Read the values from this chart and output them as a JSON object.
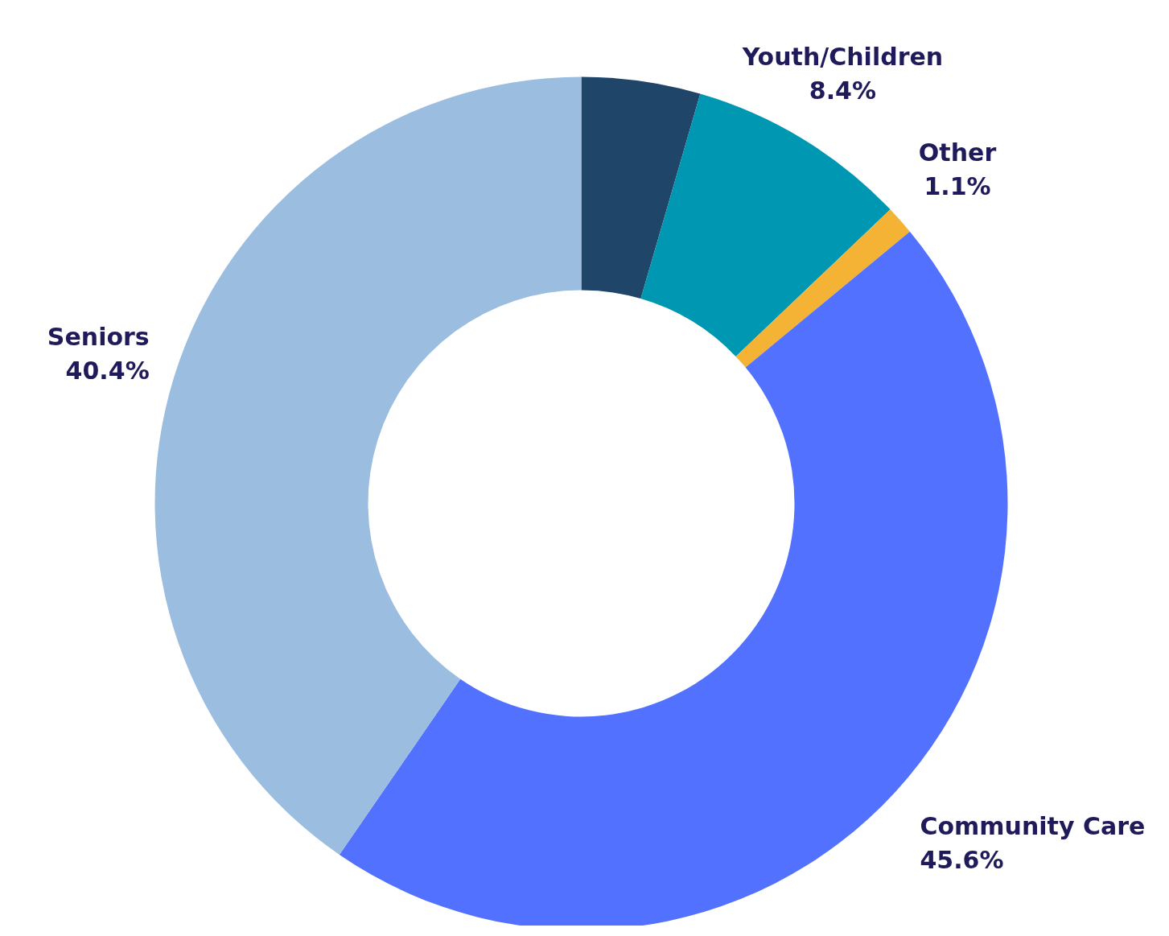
{
  "chart_data": {
    "type": "donut",
    "categories": [
      null,
      "Youth/Children",
      "Other",
      "Community Care",
      "Seniors"
    ],
    "values": [
      4.5,
      8.4,
      1.1,
      45.6,
      40.4
    ],
    "value_labels": [
      null,
      "8.4%",
      "1.1%",
      "45.6%",
      "40.4%"
    ],
    "colors": [
      "#1f4569",
      "#0097b2",
      "#f5b335",
      "#5271ff",
      "#9bbde0"
    ],
    "legend": false
  }
}
